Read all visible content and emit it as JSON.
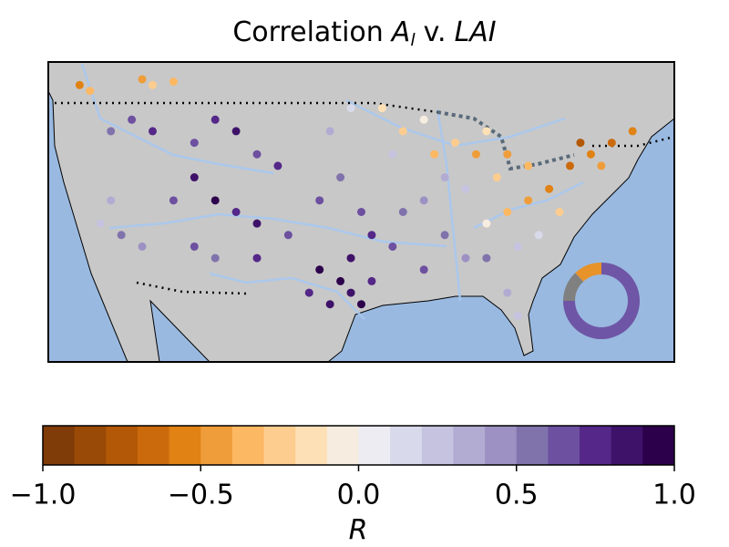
{
  "chart_data": {
    "type": "map-scatter",
    "title": {
      "prefix": "Correlation",
      "var1": "A",
      "var1_sub": "l",
      "mid": "v.",
      "var2": "LAI"
    },
    "xlim": [
      -126,
      -66
    ],
    "ylim": [
      24,
      50
    ],
    "x": [
      -123,
      -122,
      -117,
      -116,
      -114,
      -120,
      -118,
      -116,
      -112,
      -110,
      -108,
      -106,
      -104,
      -112,
      -114,
      -110,
      -108,
      -106,
      -120,
      -121,
      -119,
      -117,
      -112,
      -110,
      -106,
      -103,
      -100,
      -98,
      -97,
      -96,
      -99,
      -97,
      -95,
      -101,
      -100,
      -98,
      -96,
      -95,
      -93,
      -99,
      -97,
      -94,
      -92,
      -90,
      -93,
      -89,
      -87,
      -85,
      -84,
      -88,
      -90,
      -92,
      -86,
      -88,
      -90,
      -86,
      -84,
      -82,
      -81,
      -84,
      -82,
      -80,
      -78,
      -76,
      -74,
      -72,
      -70,
      -73,
      -77,
      -79,
      -81,
      -75,
      -80,
      -83,
      -82
    ],
    "y": [
      48,
      47.5,
      48.5,
      48,
      48.3,
      44,
      45,
      44,
      43,
      45,
      44,
      42,
      41,
      40,
      38,
      38,
      37,
      36,
      38,
      36,
      35,
      34,
      34,
      33,
      33,
      35,
      32,
      31,
      30,
      29,
      29,
      33,
      31,
      30,
      38,
      40,
      37,
      35,
      34,
      44,
      46,
      46,
      44,
      45,
      42,
      42,
      43,
      42,
      44,
      40,
      38,
      37,
      39,
      35,
      32,
      33,
      33,
      30,
      28,
      36,
      37,
      38,
      39,
      41,
      42,
      43,
      44,
      41,
      37,
      35,
      34,
      43,
      41,
      40,
      42
    ],
    "values": [
      -0.6,
      -0.4,
      -0.5,
      -0.3,
      -0.4,
      0.5,
      0.6,
      0.7,
      0.6,
      0.7,
      0.8,
      0.6,
      0.7,
      0.8,
      0.6,
      0.9,
      0.7,
      0.8,
      0.3,
      0.2,
      0.5,
      0.4,
      0.6,
      0.5,
      0.7,
      0.6,
      0.9,
      0.95,
      0.85,
      0.9,
      0.8,
      0.8,
      0.75,
      0.7,
      0.6,
      0.5,
      0.6,
      0.7,
      0.6,
      0.3,
      0.1,
      -0.2,
      -0.3,
      -0.1,
      0.2,
      -0.4,
      -0.3,
      -0.5,
      -0.2,
      0.3,
      0.4,
      0.5,
      0.2,
      0.5,
      0.6,
      0.4,
      0.5,
      0.3,
      0.2,
      -0.1,
      -0.4,
      -0.5,
      -0.6,
      -0.7,
      -0.6,
      -0.7,
      -0.6,
      -0.5,
      -0.3,
      0.1,
      0.2,
      -0.8,
      -0.4,
      -0.3,
      -0.5
    ],
    "colorbar": {
      "label": "R",
      "bins": [
        -1,
        -0.9,
        -0.8,
        -0.7,
        -0.6,
        -0.5,
        -0.4,
        -0.3,
        -0.2,
        -0.1,
        0,
        0.1,
        0.2,
        0.3,
        0.4,
        0.5,
        0.6,
        0.7,
        0.8,
        0.9,
        1
      ],
      "colors": [
        "#7f3b08",
        "#9a4a07",
        "#b35806",
        "#cb6a0c",
        "#e08214",
        "#ef9d3a",
        "#fdb863",
        "#fdcd8f",
        "#fee0b6",
        "#f7ece0",
        "#ececf2",
        "#d8daeb",
        "#c6c3e0",
        "#b2abd2",
        "#9d91c3",
        "#8073ac",
        "#6d50a0",
        "#542788",
        "#3f1269",
        "#2d004b"
      ],
      "ticks": [
        {
          "value": -1,
          "label": "−1.0"
        },
        {
          "value": -0.5,
          "label": "−0.5"
        },
        {
          "value": 0,
          "label": "0.0"
        },
        {
          "value": 0.5,
          "label": "0.5"
        },
        {
          "value": 1,
          "label": "1.0"
        }
      ]
    },
    "inset_pie": {
      "type": "pie",
      "values": [
        12,
        13,
        75
      ],
      "colors": [
        "#e8922a",
        "#808080",
        "#6f55a5"
      ]
    }
  }
}
